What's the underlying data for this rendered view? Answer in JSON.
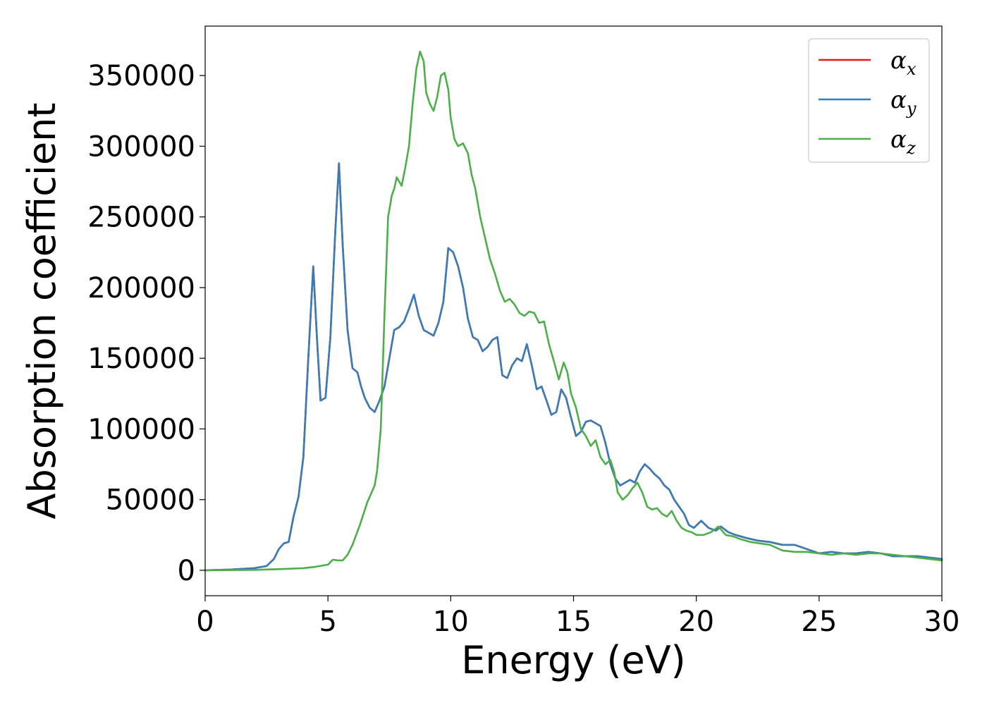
{
  "chart_data": {
    "type": "line",
    "title": "",
    "xlabel": "Energy (eV)",
    "ylabel": "Absorption coefficient",
    "xlim": [
      0,
      30
    ],
    "ylim": [
      -18000,
      385000
    ],
    "xticks": [
      "0",
      "5",
      "10",
      "15",
      "20",
      "25",
      "30"
    ],
    "xtick_values": [
      0,
      5,
      10,
      15,
      20,
      25,
      30
    ],
    "yticks": [
      "0",
      "50000",
      "100000",
      "150000",
      "200000",
      "250000",
      "300000",
      "350000"
    ],
    "ytick_values": [
      0,
      50000,
      100000,
      150000,
      200000,
      250000,
      300000,
      350000
    ],
    "grid": false,
    "legend_position": "top-right",
    "series": [
      {
        "name": "α",
        "subscript": "x",
        "color": "#e41a1c",
        "x": [
          0,
          1,
          2,
          2.5,
          2.8,
          3.0,
          3.2,
          3.4,
          3.6,
          3.8,
          4.0,
          4.2,
          4.4,
          4.55,
          4.7,
          4.9,
          5.1,
          5.3,
          5.45,
          5.6,
          5.8,
          6.0,
          6.2,
          6.35,
          6.5,
          6.7,
          6.9,
          7.1,
          7.3,
          7.5,
          7.7,
          7.9,
          8.1,
          8.3,
          8.5,
          8.7,
          8.9,
          9.1,
          9.3,
          9.5,
          9.7,
          9.9,
          10.1,
          10.3,
          10.5,
          10.7,
          10.9,
          11.1,
          11.3,
          11.5,
          11.7,
          11.9,
          12.1,
          12.3,
          12.5,
          12.7,
          12.9,
          13.1,
          13.3,
          13.5,
          13.7,
          13.9,
          14.1,
          14.3,
          14.5,
          14.7,
          14.9,
          15.1,
          15.3,
          15.5,
          15.7,
          15.9,
          16.1,
          16.3,
          16.5,
          16.7,
          16.9,
          17.1,
          17.3,
          17.5,
          17.7,
          17.9,
          18.1,
          18.3,
          18.5,
          18.7,
          18.9,
          19.1,
          19.3,
          19.5,
          19.7,
          19.9,
          20.2,
          20.5,
          20.8,
          21.0,
          21.3,
          21.6,
          22.0,
          22.5,
          23.0,
          23.5,
          24.0,
          24.5,
          25.0,
          25.5,
          26.0,
          26.5,
          27.0,
          27.5,
          28.0,
          28.5,
          29.0,
          29.5,
          30.0
        ],
        "y": [
          0,
          500,
          1500,
          3000,
          8000,
          15000,
          19000,
          20000,
          38000,
          52000,
          80000,
          150000,
          215000,
          165000,
          120000,
          122000,
          165000,
          240000,
          288000,
          230000,
          170000,
          143000,
          140000,
          130000,
          122000,
          115000,
          112000,
          120000,
          130000,
          150000,
          170000,
          172000,
          176000,
          185000,
          195000,
          180000,
          170000,
          168000,
          166000,
          175000,
          190000,
          228000,
          225000,
          215000,
          200000,
          178000,
          165000,
          163000,
          155000,
          158000,
          163000,
          165000,
          138000,
          136000,
          145000,
          150000,
          148000,
          160000,
          145000,
          128000,
          130000,
          120000,
          110000,
          112000,
          128000,
          122000,
          108000,
          95000,
          98000,
          105000,
          106000,
          104000,
          102000,
          90000,
          75000,
          65000,
          60000,
          62000,
          64000,
          62000,
          70000,
          75000,
          72000,
          68000,
          65000,
          60000,
          57000,
          50000,
          45000,
          40000,
          32000,
          30000,
          35000,
          30000,
          28000,
          31000,
          27000,
          25000,
          23000,
          21000,
          20000,
          18000,
          18000,
          15000,
          12000,
          13000,
          12000,
          12000,
          13000,
          12000,
          10000,
          10000,
          10000,
          9000,
          8000
        ]
      },
      {
        "name": "α",
        "subscript": "y",
        "color": "#377eb8",
        "x": [
          0,
          1,
          2,
          2.5,
          2.8,
          3.0,
          3.2,
          3.4,
          3.6,
          3.8,
          4.0,
          4.2,
          4.4,
          4.55,
          4.7,
          4.9,
          5.1,
          5.3,
          5.45,
          5.6,
          5.8,
          6.0,
          6.2,
          6.35,
          6.5,
          6.7,
          6.9,
          7.1,
          7.3,
          7.5,
          7.7,
          7.9,
          8.1,
          8.3,
          8.5,
          8.7,
          8.9,
          9.1,
          9.3,
          9.5,
          9.7,
          9.9,
          10.1,
          10.3,
          10.5,
          10.7,
          10.9,
          11.1,
          11.3,
          11.5,
          11.7,
          11.9,
          12.1,
          12.3,
          12.5,
          12.7,
          12.9,
          13.1,
          13.3,
          13.5,
          13.7,
          13.9,
          14.1,
          14.3,
          14.5,
          14.7,
          14.9,
          15.1,
          15.3,
          15.5,
          15.7,
          15.9,
          16.1,
          16.3,
          16.5,
          16.7,
          16.9,
          17.1,
          17.3,
          17.5,
          17.7,
          17.9,
          18.1,
          18.3,
          18.5,
          18.7,
          18.9,
          19.1,
          19.3,
          19.5,
          19.7,
          19.9,
          20.2,
          20.5,
          20.8,
          21.0,
          21.3,
          21.6,
          22.0,
          22.5,
          23.0,
          23.5,
          24.0,
          24.5,
          25.0,
          25.5,
          26.0,
          26.5,
          27.0,
          27.5,
          28.0,
          28.5,
          29.0,
          29.5,
          30.0
        ],
        "y": [
          0,
          500,
          1500,
          3000,
          8000,
          15000,
          19000,
          20000,
          38000,
          52000,
          80000,
          150000,
          215000,
          165000,
          120000,
          122000,
          165000,
          240000,
          288000,
          230000,
          170000,
          143000,
          140000,
          130000,
          122000,
          115000,
          112000,
          120000,
          130000,
          150000,
          170000,
          172000,
          176000,
          185000,
          195000,
          180000,
          170000,
          168000,
          166000,
          175000,
          190000,
          228000,
          225000,
          215000,
          200000,
          178000,
          165000,
          163000,
          155000,
          158000,
          163000,
          165000,
          138000,
          136000,
          145000,
          150000,
          148000,
          160000,
          145000,
          128000,
          130000,
          120000,
          110000,
          112000,
          128000,
          122000,
          108000,
          95000,
          98000,
          105000,
          106000,
          104000,
          102000,
          90000,
          75000,
          65000,
          60000,
          62000,
          64000,
          62000,
          70000,
          75000,
          72000,
          68000,
          65000,
          60000,
          57000,
          50000,
          45000,
          40000,
          32000,
          30000,
          35000,
          30000,
          28000,
          31000,
          27000,
          25000,
          23000,
          21000,
          20000,
          18000,
          18000,
          15000,
          12000,
          13000,
          12000,
          12000,
          13000,
          12000,
          10000,
          10000,
          10000,
          9000,
          8000
        ]
      },
      {
        "name": "α",
        "subscript": "z",
        "color": "#4daf4a",
        "x": [
          0,
          2,
          3,
          4,
          4.5,
          5,
          5.2,
          5.4,
          5.6,
          5.8,
          6.0,
          6.3,
          6.6,
          6.9,
          7.0,
          7.15,
          7.3,
          7.45,
          7.6,
          7.7,
          7.8,
          7.9,
          8.0,
          8.15,
          8.3,
          8.45,
          8.6,
          8.75,
          8.9,
          9.0,
          9.15,
          9.3,
          9.45,
          9.6,
          9.75,
          9.9,
          10.0,
          10.15,
          10.3,
          10.5,
          10.7,
          10.85,
          11.0,
          11.2,
          11.4,
          11.6,
          11.8,
          12.0,
          12.2,
          12.4,
          12.6,
          12.8,
          13.0,
          13.2,
          13.4,
          13.6,
          13.8,
          14.0,
          14.2,
          14.4,
          14.6,
          14.75,
          14.9,
          15.1,
          15.3,
          15.5,
          15.7,
          15.9,
          16.1,
          16.3,
          16.5,
          16.65,
          16.8,
          17.0,
          17.2,
          17.4,
          17.6,
          17.8,
          18.0,
          18.2,
          18.4,
          18.6,
          18.8,
          19.0,
          19.2,
          19.4,
          19.6,
          19.8,
          20.0,
          20.3,
          20.6,
          20.9,
          21.2,
          21.5,
          21.8,
          22.2,
          22.6,
          23.0,
          23.5,
          24.0,
          24.5,
          25.0,
          25.5,
          26.0,
          26.5,
          27.0,
          27.5,
          28.0,
          28.5,
          29.0,
          29.5,
          30.0
        ],
        "y": [
          0,
          300,
          800,
          1500,
          2500,
          4000,
          7500,
          7000,
          7000,
          11000,
          18000,
          32000,
          48000,
          60000,
          70000,
          100000,
          180000,
          250000,
          265000,
          270000,
          278000,
          275000,
          272000,
          285000,
          300000,
          330000,
          355000,
          367000,
          360000,
          338000,
          330000,
          325000,
          335000,
          350000,
          352000,
          340000,
          320000,
          305000,
          300000,
          302000,
          295000,
          280000,
          270000,
          250000,
          235000,
          220000,
          210000,
          198000,
          190000,
          192000,
          188000,
          182000,
          180000,
          183000,
          182000,
          175000,
          176000,
          160000,
          148000,
          135000,
          147000,
          140000,
          125000,
          115000,
          100000,
          95000,
          88000,
          92000,
          80000,
          75000,
          78000,
          70000,
          55000,
          50000,
          53000,
          58000,
          62000,
          55000,
          45000,
          43000,
          44000,
          40000,
          38000,
          42000,
          35000,
          30000,
          28000,
          27000,
          25000,
          25000,
          27000,
          31000,
          25000,
          24000,
          22000,
          20000,
          19000,
          18000,
          14000,
          13000,
          13000,
          12000,
          11000,
          12000,
          11000,
          12000,
          12000,
          11000,
          10000,
          9000,
          8000,
          7000
        ]
      }
    ]
  }
}
